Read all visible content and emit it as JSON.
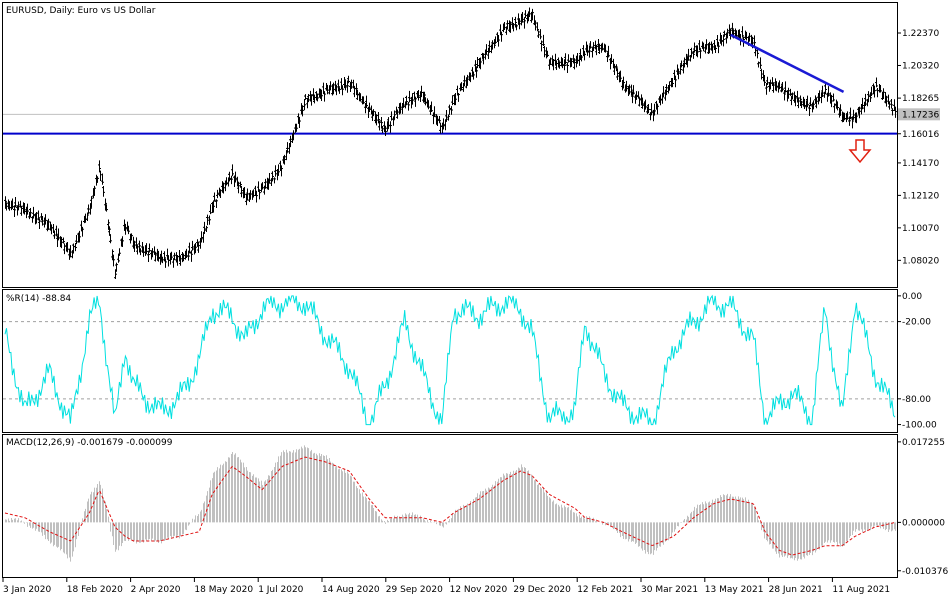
{
  "chart_data": [
    {
      "type": "line",
      "style": "bars",
      "pane": "price",
      "title": "EURUSD, Daily:  Euro vs US Dollar",
      "yticks": [
        1.0802,
        1.1007,
        1.1212,
        1.1417,
        1.1601,
        1.1826,
        1.2032,
        1.2237
      ],
      "ytick_labels": [
        "1.08020",
        "1.10070",
        "1.12120",
        "1.14170",
        "1.16016",
        "1.18265",
        "1.20320",
        "1.22370"
      ],
      "ylim": [
        1.064,
        1.242
      ],
      "current_price": 1.17236,
      "current_price_label": "1.17236",
      "support_level": 1.16016,
      "support_label": "1.16016",
      "trendline": {
        "from": {
          "date": "2021-05-25",
          "value": 1.2225
        },
        "to": {
          "date": "2021-08-12",
          "value": 1.1865
        }
      },
      "arrow": {
        "direction": "down",
        "color": "#e02010"
      },
      "x": [
        "2020-01-03",
        "2020-01-17",
        "2020-02-03",
        "2020-02-18",
        "2020-03-02",
        "2020-03-09",
        "2020-03-20",
        "2020-03-27",
        "2020-04-02",
        "2020-04-20",
        "2020-05-04",
        "2020-05-18",
        "2020-05-27",
        "2020-06-10",
        "2020-06-19",
        "2020-07-01",
        "2020-07-15",
        "2020-07-31",
        "2020-08-14",
        "2020-08-31",
        "2020-09-14",
        "2020-09-25",
        "2020-10-09",
        "2020-10-21",
        "2020-11-04",
        "2020-11-12",
        "2020-11-30",
        "2020-12-17",
        "2020-12-29",
        "2021-01-06",
        "2021-01-18",
        "2021-02-05",
        "2021-02-12",
        "2021-02-25",
        "2021-03-10",
        "2021-03-31",
        "2021-04-15",
        "2021-04-29",
        "2021-05-13",
        "2021-05-25",
        "2021-06-10",
        "2021-06-18",
        "2021-06-28",
        "2021-07-07",
        "2021-07-21",
        "2021-07-30",
        "2021-08-11",
        "2021-08-20",
        "2021-09-03",
        "2021-09-16"
      ],
      "series": [
        {
          "values": [
            1.116,
            1.112,
            1.102,
            1.084,
            1.112,
            1.14,
            1.072,
            1.103,
            1.09,
            1.082,
            1.081,
            1.09,
            1.115,
            1.135,
            1.12,
            1.125,
            1.14,
            1.181,
            1.187,
            1.192,
            1.175,
            1.163,
            1.18,
            1.185,
            1.163,
            1.182,
            1.205,
            1.226,
            1.232,
            1.235,
            1.205,
            1.205,
            1.213,
            1.215,
            1.192,
            1.173,
            1.195,
            1.213,
            1.215,
            1.225,
            1.218,
            1.191,
            1.19,
            1.183,
            1.177,
            1.188,
            1.171,
            1.17,
            1.19,
            1.176
          ]
        }
      ],
      "xtick_labels": [
        "3 Jan 2020",
        "18 Feb 2020",
        "2 Apr 2020",
        "18 May 2020",
        "1 Jul 2020",
        "14 Aug 2020",
        "29 Sep 2020",
        "12 Nov 2020",
        "29 Dec 2020",
        "12 Feb 2021",
        "30 Mar 2021",
        "13 May 2021",
        "28 Jun 2021",
        "11 Aug 2021"
      ],
      "grid": false,
      "colors": {
        "bars": "#000000",
        "support": "#0000cc",
        "trendline": "#1a1ad4",
        "price_line": "#c0c0c0"
      }
    },
    {
      "type": "line",
      "pane": "williams_r",
      "title": "%R(14) -88.84",
      "yticks": [
        0,
        -20,
        -80,
        -100
      ],
      "ytick_labels": [
        "0.00",
        "-20.00",
        "-80.00",
        "-100.00"
      ],
      "ylim": [
        -105,
        3
      ],
      "levels": [
        -20,
        -80
      ],
      "series": [
        {
          "values": [
            -30,
            -90,
            -60,
            -100,
            -20,
            -2,
            -100,
            -40,
            -70,
            -90,
            -80,
            -50,
            -10,
            -15,
            -35,
            -10,
            -5,
            -5,
            -30,
            -55,
            -100,
            -70,
            -20,
            -60,
            -100,
            -10,
            -15,
            -5,
            -10,
            -30,
            -95,
            -90,
            -20,
            -60,
            -85,
            -100,
            -40,
            -20,
            -5,
            -8,
            -35,
            -95,
            -85,
            -75,
            -95,
            -10,
            -95,
            -3,
            -60,
            -88.84
          ]
        }
      ],
      "colors": {
        "line": "#00e0e0"
      }
    },
    {
      "type": "bar",
      "pane": "macd",
      "title": "MACD(12,26,9) -0.001679 -0.000099",
      "yticks": [
        0.017255,
        0.0,
        -0.010376
      ],
      "ytick_labels": [
        "0.017255",
        "0.000000",
        "-0.010376"
      ],
      "ylim": [
        -0.0115,
        0.0183
      ],
      "series": [
        {
          "name": "MACD",
          "values": [
            0.001,
            0.0,
            -0.004,
            -0.008,
            0.006,
            0.009,
            -0.006,
            -0.004,
            -0.004,
            -0.004,
            -0.003,
            0.002,
            0.01,
            0.015,
            0.012,
            0.008,
            0.015,
            0.016,
            0.014,
            0.01,
            0.004,
            0.0,
            0.002,
            0.001,
            -0.001,
            0.002,
            0.006,
            0.01,
            0.012,
            0.01,
            0.005,
            0.002,
            0.001,
            0.0,
            -0.003,
            -0.007,
            -0.002,
            0.003,
            0.005,
            0.006,
            0.004,
            -0.004,
            -0.007,
            -0.008,
            -0.007,
            -0.004,
            -0.005,
            -0.002,
            -0.001,
            -0.001679
          ]
        },
        {
          "name": "Signal",
          "values": [
            0.002,
            0.001,
            -0.002,
            -0.004,
            0.002,
            0.007,
            -0.001,
            -0.003,
            -0.004,
            -0.004,
            -0.003,
            -0.002,
            0.006,
            0.012,
            0.01,
            0.007,
            0.012,
            0.014,
            0.013,
            0.011,
            0.005,
            0.001,
            0.001,
            0.001,
            0.0,
            0.002,
            0.005,
            0.009,
            0.011,
            0.01,
            0.006,
            0.003,
            0.001,
            0.0,
            -0.002,
            -0.005,
            -0.003,
            0.001,
            0.004,
            0.005,
            0.004,
            -0.002,
            -0.006,
            -0.007,
            -0.006,
            -0.005,
            -0.005,
            -0.003,
            -0.001,
            -9.9e-05
          ]
        }
      ],
      "colors": {
        "histogram": "#c0c0c0",
        "signal": "#e01010"
      }
    }
  ]
}
